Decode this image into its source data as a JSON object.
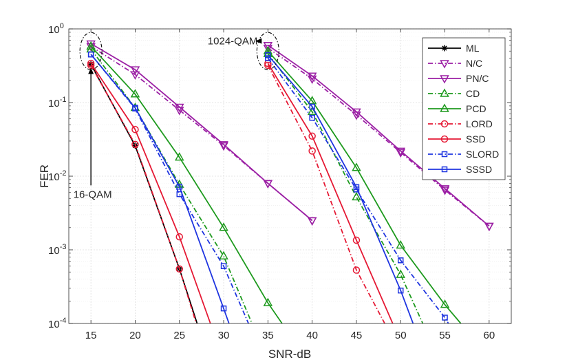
{
  "chart_data": {
    "type": "line",
    "title": "",
    "xlabel": "SNR-dB",
    "ylabel": "FER",
    "xlim": [
      12.5,
      62.5
    ],
    "ylim_log10": [
      -4,
      0
    ],
    "grid": true,
    "x_ticks": [
      15,
      20,
      25,
      30,
      35,
      40,
      45,
      50,
      55,
      60
    ],
    "x_tick_labels": [
      "15",
      "20",
      "25",
      "30",
      "35",
      "40",
      "45",
      "50",
      "55",
      "60"
    ],
    "y_ticks": [
      {
        "base": "10",
        "exp": "-4",
        "value": 0.0001
      },
      {
        "base": "10",
        "exp": "-3",
        "value": 0.001
      },
      {
        "base": "10",
        "exp": "-2",
        "value": 0.01
      },
      {
        "base": "10",
        "exp": "-1",
        "value": 0.1
      },
      {
        "base": "10",
        "exp": "0",
        "value": 1
      }
    ],
    "legend_position": "top-right",
    "annotations": [
      {
        "text": "1024-QAM",
        "label_x": 34.3,
        "label_y": 0.7,
        "target_x": 35,
        "target_y": 0.5
      },
      {
        "text": "16-QAM",
        "label_x": 15.2,
        "label_y": 0.0058,
        "target_x": 15,
        "target_y": 0.33
      }
    ],
    "series": [
      {
        "name": "ML",
        "color": "#000000",
        "dash": "solid",
        "marker": "asterisk",
        "groups": [
          [
            [
              15,
              0.33
            ],
            [
              20,
              0.026
            ],
            [
              25,
              0.00055
            ],
            [
              27,
              0.0001
            ]
          ]
        ]
      },
      {
        "name": "N/C",
        "color": "#9B1FA4",
        "dash": "dashdot",
        "marker": "triangle-down",
        "groups": [
          [
            [
              15,
              0.58
            ],
            [
              20,
              0.24
            ],
            [
              25,
              0.079
            ],
            [
              30,
              0.026
            ],
            [
              35,
              0.008
            ],
            [
              40,
              0.0025
            ]
          ],
          [
            [
              35,
              0.55
            ],
            [
              40,
              0.21
            ],
            [
              45,
              0.068
            ],
            [
              50,
              0.021
            ],
            [
              55,
              0.0065
            ],
            [
              60,
              0.0021
            ]
          ]
        ]
      },
      {
        "name": "PN/C",
        "color": "#9B1FA4",
        "dash": "solid",
        "marker": "triangle-down",
        "groups": [
          [
            [
              15,
              0.63
            ],
            [
              20,
              0.28
            ],
            [
              25,
              0.087
            ],
            [
              30,
              0.027
            ],
            [
              35,
              0.008
            ],
            [
              40,
              0.0025
            ]
          ],
          [
            [
              35,
              0.6
            ],
            [
              40,
              0.23
            ],
            [
              45,
              0.075
            ],
            [
              50,
              0.022
            ],
            [
              55,
              0.0068
            ],
            [
              60,
              0.0021
            ]
          ]
        ]
      },
      {
        "name": "CD",
        "color": "#1E9A1E",
        "dash": "dashdot",
        "marker": "triangle-up",
        "groups": [
          [
            [
              15,
              0.53
            ],
            [
              20,
              0.085
            ],
            [
              25,
              0.0077
            ],
            [
              30,
              0.00082
            ],
            [
              33.2,
              0.0001
            ]
          ],
          [
            [
              35,
              0.46
            ],
            [
              40,
              0.075
            ],
            [
              45,
              0.0052
            ],
            [
              50,
              0.00046
            ],
            [
              52.5,
              0.0001
            ]
          ]
        ]
      },
      {
        "name": "PCD",
        "color": "#1E9A1E",
        "dash": "solid",
        "marker": "triangle-up",
        "groups": [
          [
            [
              15,
              0.58
            ],
            [
              20,
              0.13
            ],
            [
              25,
              0.018
            ],
            [
              30,
              0.002
            ],
            [
              35,
              0.00019
            ],
            [
              36.6,
              0.0001
            ]
          ],
          [
            [
              35,
              0.5
            ],
            [
              40,
              0.105
            ],
            [
              45,
              0.013
            ],
            [
              50,
              0.00115
            ],
            [
              55,
              0.00018
            ],
            [
              56.8,
              0.0001
            ]
          ]
        ]
      },
      {
        "name": "LORD",
        "color": "#E51934",
        "dash": "dashdot",
        "marker": "circle",
        "groups": [
          [
            [
              15,
              0.32
            ],
            [
              20,
              0.027
            ],
            [
              25,
              0.00055
            ],
            [
              26.9,
              0.0001
            ]
          ],
          [
            [
              35,
              0.32
            ],
            [
              40,
              0.022
            ],
            [
              45,
              0.00053
            ],
            [
              48.2,
              0.0001
            ]
          ]
        ]
      },
      {
        "name": "SSD",
        "color": "#E51934",
        "dash": "solid",
        "marker": "circle",
        "groups": [
          [
            [
              15,
              0.34
            ],
            [
              20,
              0.043
            ],
            [
              25,
              0.0015
            ],
            [
              28.5,
              0.0001
            ]
          ],
          [
            [
              35,
              0.34
            ],
            [
              40,
              0.035
            ],
            [
              45,
              0.00135
            ],
            [
              49.1,
              0.0001
            ]
          ]
        ]
      },
      {
        "name": "SLORD",
        "color": "#1F35E0",
        "dash": "dashdot",
        "marker": "square",
        "groups": [
          [
            [
              15,
              0.45
            ],
            [
              20,
              0.083
            ],
            [
              25,
              0.0057
            ],
            [
              30,
              0.0006
            ],
            [
              32.8,
              0.0001
            ]
          ],
          [
            [
              35,
              0.4
            ],
            [
              40,
              0.062
            ],
            [
              45,
              0.0066
            ],
            [
              50,
              0.00072
            ],
            [
              55,
              0.00012
            ],
            [
              55.4,
              0.0001
            ]
          ]
        ]
      },
      {
        "name": "SSSD",
        "color": "#1F35E0",
        "dash": "solid",
        "marker": "square",
        "groups": [
          [
            [
              15,
              0.45
            ],
            [
              20,
              0.085
            ],
            [
              25,
              0.0072
            ],
            [
              30,
              0.00016
            ],
            [
              30.6,
              0.0001
            ]
          ],
          [
            [
              35,
              0.44
            ],
            [
              40,
              0.088
            ],
            [
              45,
              0.0071
            ],
            [
              50,
              0.00028
            ],
            [
              51.4,
              0.0001
            ]
          ]
        ]
      }
    ]
  }
}
